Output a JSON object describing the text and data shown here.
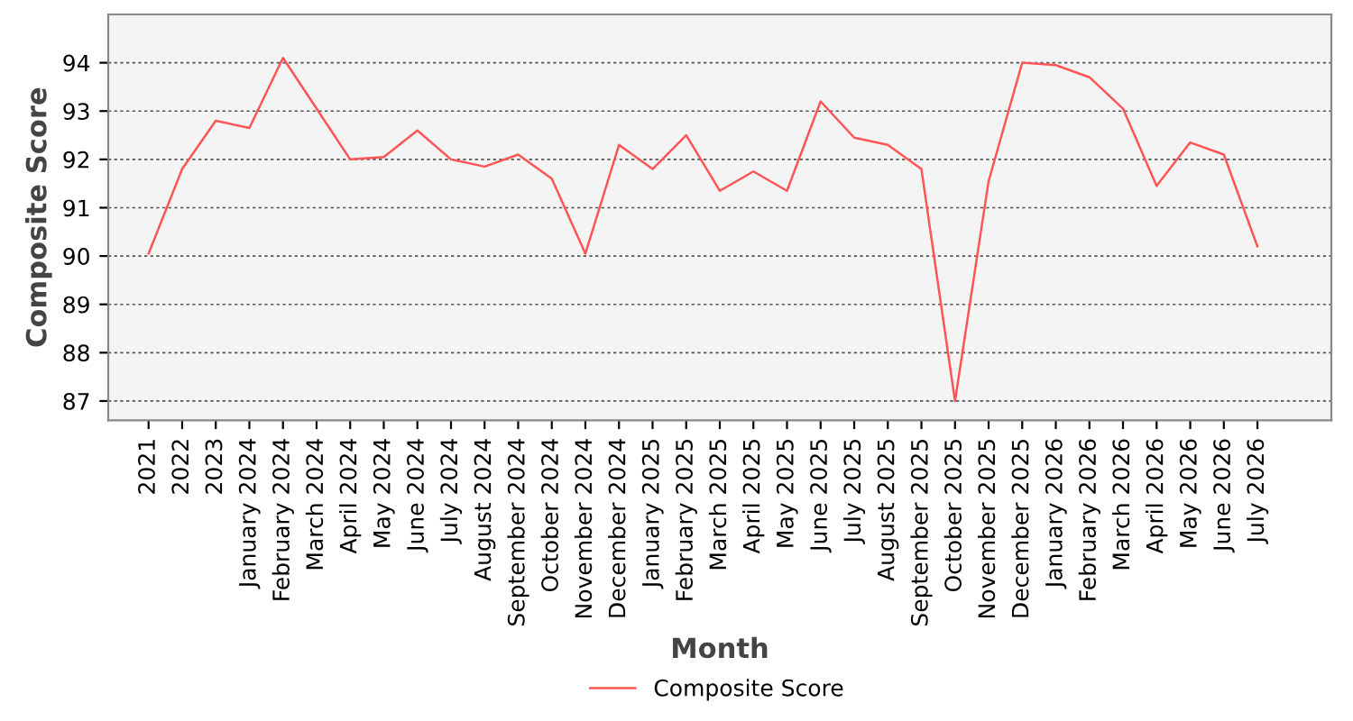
{
  "chart_data": {
    "type": "line",
    "xlabel": "Month",
    "ylabel": "Composite Score",
    "categories": [
      "2021",
      "2022",
      "2023",
      "January 2024",
      "February 2024",
      "March 2024",
      "April 2024",
      "May 2024",
      "June 2024",
      "July 2024",
      "August 2024",
      "September 2024",
      "October 2024",
      "November 2024",
      "December 2024",
      "January 2025",
      "February 2025",
      "March 2025",
      "April 2025",
      "May 2025",
      "June 2025",
      "July 2025",
      "August 2025",
      "September 2025",
      "October 2025",
      "November 2025",
      "December 2025",
      "January 2026",
      "February 2026",
      "March 2026",
      "April 2026",
      "May 2026",
      "June 2026",
      "July 2026"
    ],
    "series": [
      {
        "name": "Composite Score",
        "color": "#ff5555",
        "values": [
          90.05,
          91.8,
          92.8,
          92.65,
          94.1,
          93.05,
          92.0,
          92.05,
          92.6,
          92.0,
          91.85,
          92.1,
          91.6,
          90.05,
          92.3,
          91.8,
          92.5,
          91.35,
          91.75,
          91.35,
          93.2,
          92.45,
          92.3,
          91.8,
          87.0,
          91.55,
          94.0,
          93.95,
          93.7,
          93.05,
          91.45,
          92.35,
          92.1,
          90.2
        ]
      }
    ],
    "ylim": [
      86.6,
      95
    ],
    "yticks": [
      87,
      88,
      89,
      90,
      91,
      92,
      93,
      94
    ],
    "grid": "y",
    "legend": "bottom",
    "marker": "none",
    "line_style": "solid"
  }
}
